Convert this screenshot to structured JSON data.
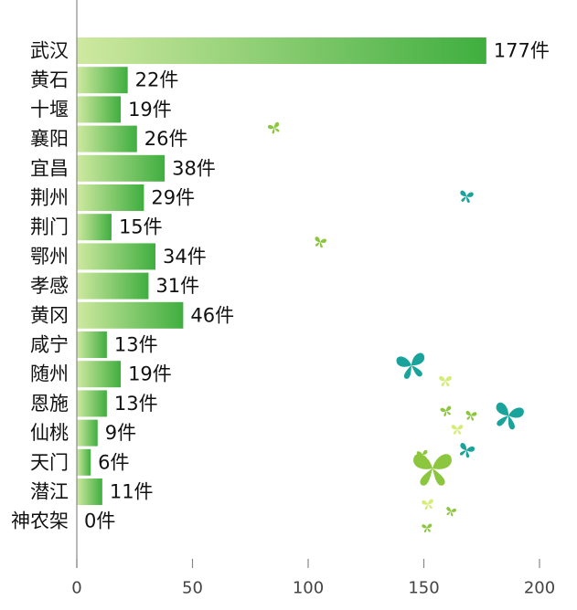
{
  "chart_data": {
    "type": "bar",
    "orientation": "horizontal",
    "categories": [
      "武汉",
      "黄石",
      "十堰",
      "襄阳",
      "宜昌",
      "荆州",
      "荆门",
      "鄂州",
      "孝感",
      "黄冈",
      "咸宁",
      "随州",
      "恩施",
      "仙桃",
      "天门",
      "潜江",
      "神农架"
    ],
    "values": [
      177,
      22,
      19,
      26,
      38,
      29,
      15,
      34,
      31,
      46,
      13,
      19,
      13,
      9,
      6,
      11,
      0
    ],
    "value_labels": [
      "177件",
      "22件",
      "19件",
      "26件",
      "38件",
      "29件",
      "15件",
      "34件",
      "31件",
      "46件",
      "13件",
      "19件",
      "13件",
      "9件",
      "6件",
      "11件",
      "0件"
    ],
    "title": "",
    "xlabel": "",
    "ylabel": "",
    "xlim": [
      0,
      200
    ],
    "x_ticks": [
      0,
      50,
      100,
      150,
      200
    ],
    "x_tick_labels": [
      "0",
      "50",
      "100",
      "150",
      "200"
    ],
    "grid": false,
    "legend": "none",
    "colors": {
      "bar_light": "#cfe9a0",
      "bar_dark": "#3fae3f",
      "text": "#111111",
      "axis": "#888888",
      "butterfly_teal": "#1aa39a",
      "butterfly_lime": "#8cc63f",
      "butterfly_pale": "#d6ec7a"
    }
  },
  "decorations": {
    "icons": [
      "butterfly-icon"
    ]
  }
}
